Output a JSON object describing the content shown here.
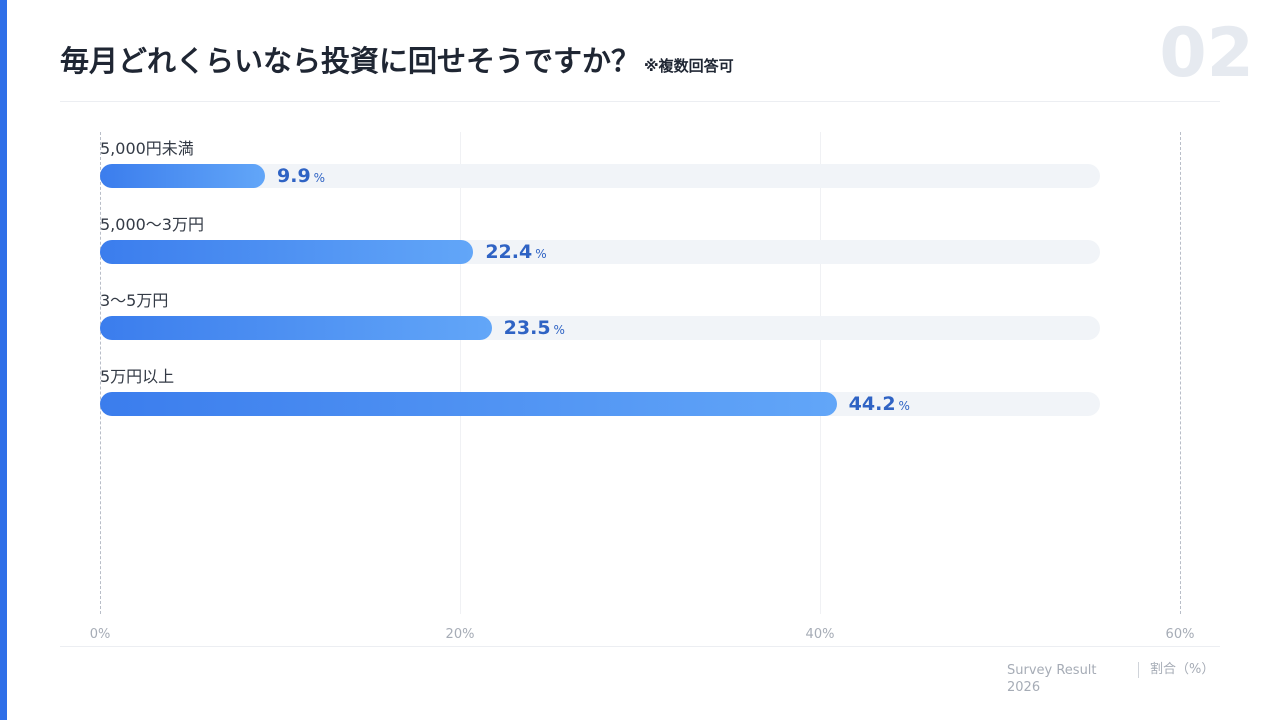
{
  "header": {
    "title": "毎月どれくらいなら投資に回せそうですか？",
    "note": "※複数回答可",
    "page_number": "02"
  },
  "chart_data": {
    "type": "bar",
    "orientation": "horizontal",
    "categories": [
      "5,000円未満",
      "5,000〜3万円",
      "3〜5万円",
      "5万円以上"
    ],
    "values": [
      9.9,
      22.4,
      23.5,
      44.2
    ],
    "value_unit": "%",
    "xlim": [
      0,
      60
    ],
    "xticks": [
      "0%",
      "20%",
      "40%",
      "60%"
    ],
    "xlabel": "割合（%）",
    "grid": true,
    "colors": {
      "bar_start": "#3b7ded",
      "bar_end": "#62a6f8",
      "track": "#f1f4f8",
      "value": "#2f63c4"
    }
  },
  "footer": {
    "source": "Survey Result",
    "year": "2026",
    "axis_label": "割合（%）"
  }
}
